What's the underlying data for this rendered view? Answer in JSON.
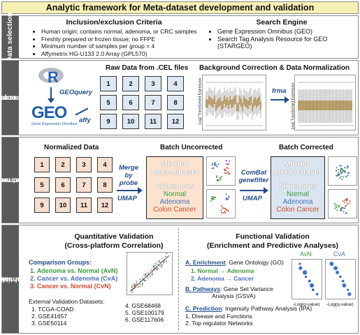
{
  "title": "Analytic framework for Meta-dataset development and validation",
  "colors": {
    "normal": "#3a9a3a",
    "adenoma": "#4a6fb8",
    "cancer": "#d04a2a",
    "arrow": "#234c8a",
    "merged_uncorrected_bg": "#fbe3cf",
    "merged_corrected_bg": "#dbe5f1"
  },
  "sec1": {
    "side": "Data selection",
    "inc_title": "Inclusion/exclusion Criteria",
    "inc_items": [
      "Human origin; contains normal, adenoma, or CRC samples",
      "Freshly prepared or frozen tissue; no FFPE",
      "Minimum number of samples per group = 4",
      "Affymetrix HG-U133 2.0 Array (GPL570)"
    ],
    "search_title": "Search Engine",
    "search_items": [
      "Gene Expression Omnibus (GEO)",
      "Search Tag Analysis Resource for GEO (STARGEO)"
    ]
  },
  "sec2": {
    "side_1": "Data acquisition",
    "side_2": "& pre-processing",
    "r_logo": "R",
    "geoquery": "GEOquery",
    "geo_logo": "GEO",
    "geo_sub": "Gene Expression Omnibus",
    "affy": "affy",
    "raw_title": "Raw Data from .CEL files",
    "files": [
      "1",
      "2",
      "3",
      "4",
      "5",
      "6",
      "7",
      "8",
      "9",
      "10",
      "11",
      "12"
    ],
    "bg_title": "Background Correction & Data Normalization",
    "frma": "frma",
    "ylabel": "Log2 Transformed Expression"
  },
  "sec3": {
    "side_1": "Dataset merging &",
    "side_2": "batch correction",
    "norm_title": "Normalized Data",
    "cells": [
      "1",
      "2",
      "3",
      "4",
      "5",
      "6",
      "7",
      "8",
      "9",
      "10",
      "11",
      "12"
    ],
    "merge_label_1": "Merge",
    "merge_label_2": "by",
    "merge_label_3": "probe",
    "umap": "UMAP",
    "uncorr_title": "Batch Uncorrected",
    "merged_1": "Merged",
    "merged_2": "Meta-dataset",
    "signatures": "Signatures",
    "normal": "Normal",
    "adenoma": "Adenoma",
    "colon_cancer": "Colon Cancer",
    "combat": "ComBat",
    "genefilter": "genefilter",
    "corr_title": "Batch Corrected"
  },
  "sec4": {
    "side_1": "Quantitative &",
    "side_2": "functional validation",
    "quant_title_1": "Quantitative Validation",
    "quant_title_2": "(Cross-platform Correlation)",
    "groups_title": "Comparison Groups:",
    "groups": [
      {
        "num": "1.",
        "text": "Adenoma vs. Normal (AvN)"
      },
      {
        "num": "2.",
        "text": "Cancer vs. Adenoma (CvA)"
      },
      {
        "num": "3.",
        "text": "Cancer vs. Normal (CvN)"
      }
    ],
    "ext_title": "External Validation Datasets:",
    "ext_left": [
      "1.  TCGA-COAD",
      "2.  GSE41657",
      "3.  GSE50114"
    ],
    "ext_right": [
      "4.  GSE68468",
      "5.  GSE100179",
      "6.  GSE117606"
    ],
    "func_title_1": "Functional Validation",
    "func_title_2": "(Enrichment and Predictive Analyses)",
    "a_label": "A. Enrichment",
    "a_text": ": Gene Ontology (GO)",
    "a_items": [
      "1.  Normal → Adenoma",
      "2.  Adenoma → Cancer"
    ],
    "b_label": "B. Pathways",
    "b_text_1": ": Gene Set Variance",
    "b_text_2": "Analysis (GSVA)",
    "c_label": "C. Prediction",
    "c_text": ": Ingenuity Pathway Analysis (IPA)",
    "c_items": [
      "1. Disease and Functions",
      "2. Top regulator Networks"
    ],
    "avn": "AvN",
    "cva": "CvA",
    "xlabel": "-Log(q-value)"
  }
}
